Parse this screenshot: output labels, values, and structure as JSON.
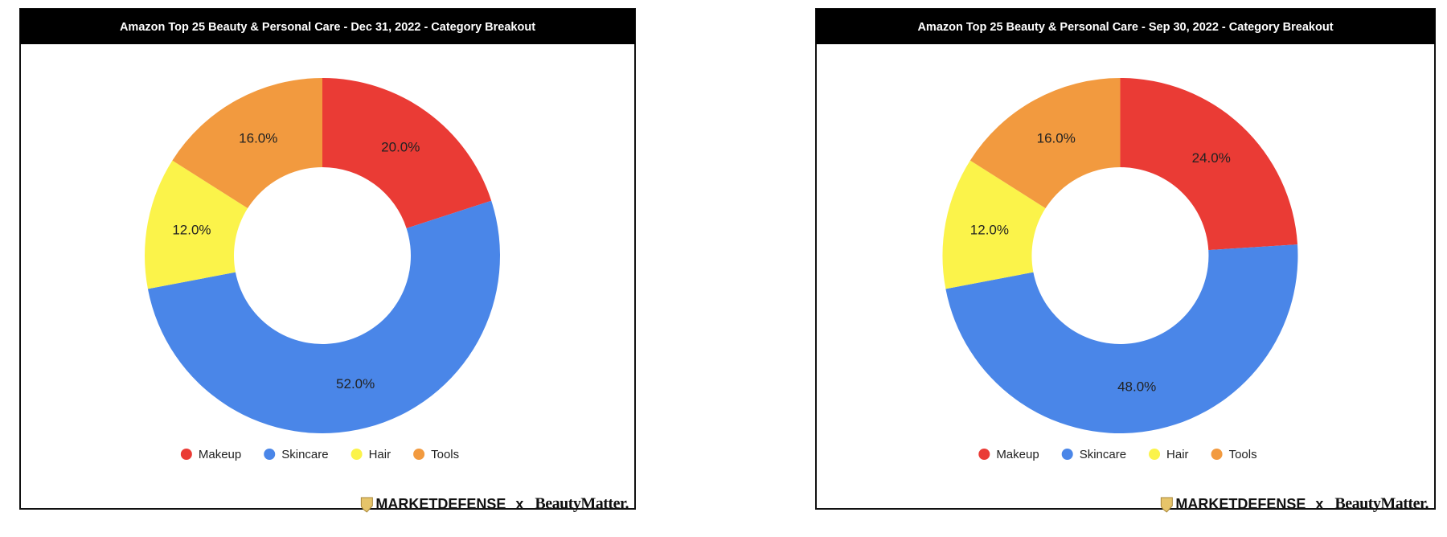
{
  "chart_data": [
    {
      "type": "pie",
      "donut": true,
      "title": "Amazon Top 25 Beauty & Personal Care - Dec 31, 2022 - Category Breakout",
      "categories": [
        "Makeup",
        "Skincare",
        "Hair",
        "Tools"
      ],
      "values": [
        20,
        52,
        12,
        16
      ],
      "value_labels": [
        "20.0%",
        "52.0%",
        "12.0%",
        "16.0%"
      ],
      "colors": [
        "#ea3b35",
        "#4a86e8",
        "#fbf34a",
        "#f29a3f"
      ]
    },
    {
      "type": "pie",
      "donut": true,
      "title": "Amazon Top 25 Beauty & Personal Care - Sep 30, 2022 - Category Breakout",
      "categories": [
        "Makeup",
        "Skincare",
        "Hair",
        "Tools"
      ],
      "values": [
        24,
        48,
        12,
        16
      ],
      "value_labels": [
        "24.0%",
        "48.0%",
        "12.0%",
        "16.0%"
      ],
      "colors": [
        "#ea3b35",
        "#4a86e8",
        "#fbf34a",
        "#f29a3f"
      ]
    }
  ],
  "branding": {
    "left": "MARKETDEFENSE",
    "separator": "x",
    "right": "BeautyMatter."
  }
}
